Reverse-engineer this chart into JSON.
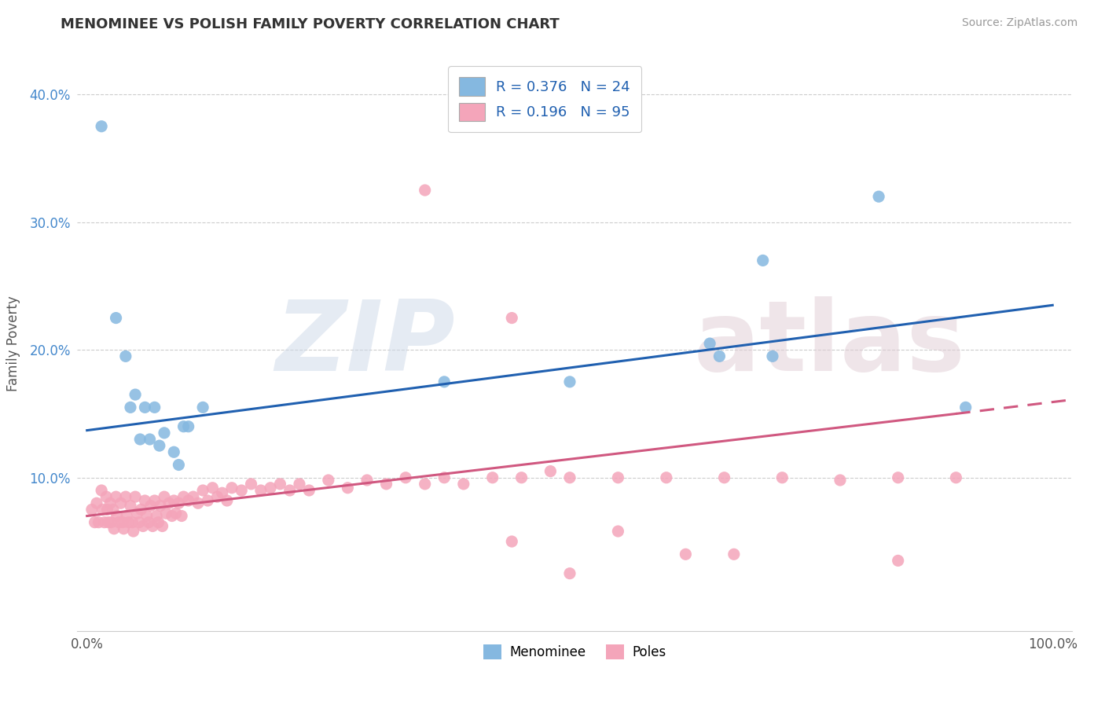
{
  "title": "MENOMINEE VS POLISH FAMILY POVERTY CORRELATION CHART",
  "source": "Source: ZipAtlas.com",
  "ylabel": "Family Poverty",
  "xlim": [
    -0.01,
    1.02
  ],
  "ylim": [
    -0.02,
    0.43
  ],
  "xticks": [
    0.0,
    0.25,
    0.5,
    0.75,
    1.0
  ],
  "xtick_labels": [
    "0.0%",
    "",
    "",
    "",
    "100.0%"
  ],
  "yticks": [
    0.1,
    0.2,
    0.3,
    0.4
  ],
  "ytick_labels": [
    "10.0%",
    "20.0%",
    "30.0%",
    "40.0%"
  ],
  "menominee_color": "#85b8e0",
  "poles_color": "#f4a5ba",
  "trend_menominee_color": "#2060b0",
  "trend_poles_color": "#d05880",
  "background_color": "#ffffff",
  "grid_color": "#cccccc",
  "legend_color": "#2060b0",
  "R_men": "0.376",
  "N_men": "24",
  "R_poles": "0.196",
  "N_poles": "95",
  "menominee_x": [
    0.015,
    0.03,
    0.04,
    0.045,
    0.05,
    0.055,
    0.06,
    0.065,
    0.07,
    0.075,
    0.08,
    0.09,
    0.095,
    0.1,
    0.105,
    0.12,
    0.37,
    0.5,
    0.645,
    0.655,
    0.7,
    0.71,
    0.82,
    0.91
  ],
  "menominee_y": [
    0.375,
    0.225,
    0.195,
    0.155,
    0.165,
    0.13,
    0.155,
    0.13,
    0.155,
    0.125,
    0.135,
    0.12,
    0.11,
    0.14,
    0.14,
    0.155,
    0.175,
    0.175,
    0.205,
    0.195,
    0.27,
    0.195,
    0.32,
    0.155
  ],
  "poles_x": [
    0.005,
    0.008,
    0.01,
    0.012,
    0.015,
    0.016,
    0.018,
    0.02,
    0.021,
    0.022,
    0.024,
    0.025,
    0.027,
    0.028,
    0.03,
    0.031,
    0.033,
    0.035,
    0.037,
    0.038,
    0.04,
    0.041,
    0.043,
    0.045,
    0.047,
    0.048,
    0.05,
    0.052,
    0.054,
    0.056,
    0.058,
    0.06,
    0.062,
    0.064,
    0.066,
    0.068,
    0.07,
    0.072,
    0.074,
    0.076,
    0.078,
    0.08,
    0.082,
    0.085,
    0.088,
    0.09,
    0.092,
    0.095,
    0.098,
    0.1,
    0.105,
    0.11,
    0.115,
    0.12,
    0.125,
    0.13,
    0.135,
    0.14,
    0.145,
    0.15,
    0.16,
    0.17,
    0.18,
    0.19,
    0.2,
    0.21,
    0.22,
    0.23,
    0.25,
    0.27,
    0.29,
    0.31,
    0.33,
    0.35,
    0.37,
    0.39,
    0.42,
    0.45,
    0.48,
    0.5,
    0.35,
    0.44,
    0.55,
    0.6,
    0.66,
    0.72,
    0.78,
    0.84,
    0.9,
    0.5,
    0.55,
    0.62,
    0.67,
    0.84,
    0.44
  ],
  "poles_y": [
    0.075,
    0.065,
    0.08,
    0.065,
    0.09,
    0.075,
    0.065,
    0.085,
    0.075,
    0.065,
    0.08,
    0.065,
    0.075,
    0.06,
    0.085,
    0.07,
    0.065,
    0.08,
    0.065,
    0.06,
    0.085,
    0.07,
    0.065,
    0.078,
    0.065,
    0.058,
    0.085,
    0.072,
    0.065,
    0.075,
    0.062,
    0.082,
    0.07,
    0.065,
    0.078,
    0.062,
    0.082,
    0.07,
    0.065,
    0.078,
    0.062,
    0.085,
    0.072,
    0.08,
    0.07,
    0.082,
    0.072,
    0.08,
    0.07,
    0.085,
    0.082,
    0.085,
    0.08,
    0.09,
    0.082,
    0.092,
    0.085,
    0.088,
    0.082,
    0.092,
    0.09,
    0.095,
    0.09,
    0.092,
    0.095,
    0.09,
    0.095,
    0.09,
    0.098,
    0.092,
    0.098,
    0.095,
    0.1,
    0.095,
    0.1,
    0.095,
    0.1,
    0.1,
    0.105,
    0.1,
    0.325,
    0.225,
    0.1,
    0.1,
    0.1,
    0.1,
    0.098,
    0.1,
    0.1,
    0.025,
    0.058,
    0.04,
    0.04,
    0.035,
    0.05
  ],
  "trend_men_x0": 0.0,
  "trend_men_x1": 1.0,
  "trend_men_y0": 0.137,
  "trend_men_y1": 0.235,
  "trend_poles_solid_x0": 0.0,
  "trend_poles_solid_x1": 0.9,
  "trend_poles_solid_y0": 0.07,
  "trend_poles_solid_y1": 0.15,
  "trend_poles_dash_x0": 0.9,
  "trend_poles_dash_x1": 1.02,
  "trend_poles_dash_y0": 0.15,
  "trend_poles_dash_y1": 0.161
}
